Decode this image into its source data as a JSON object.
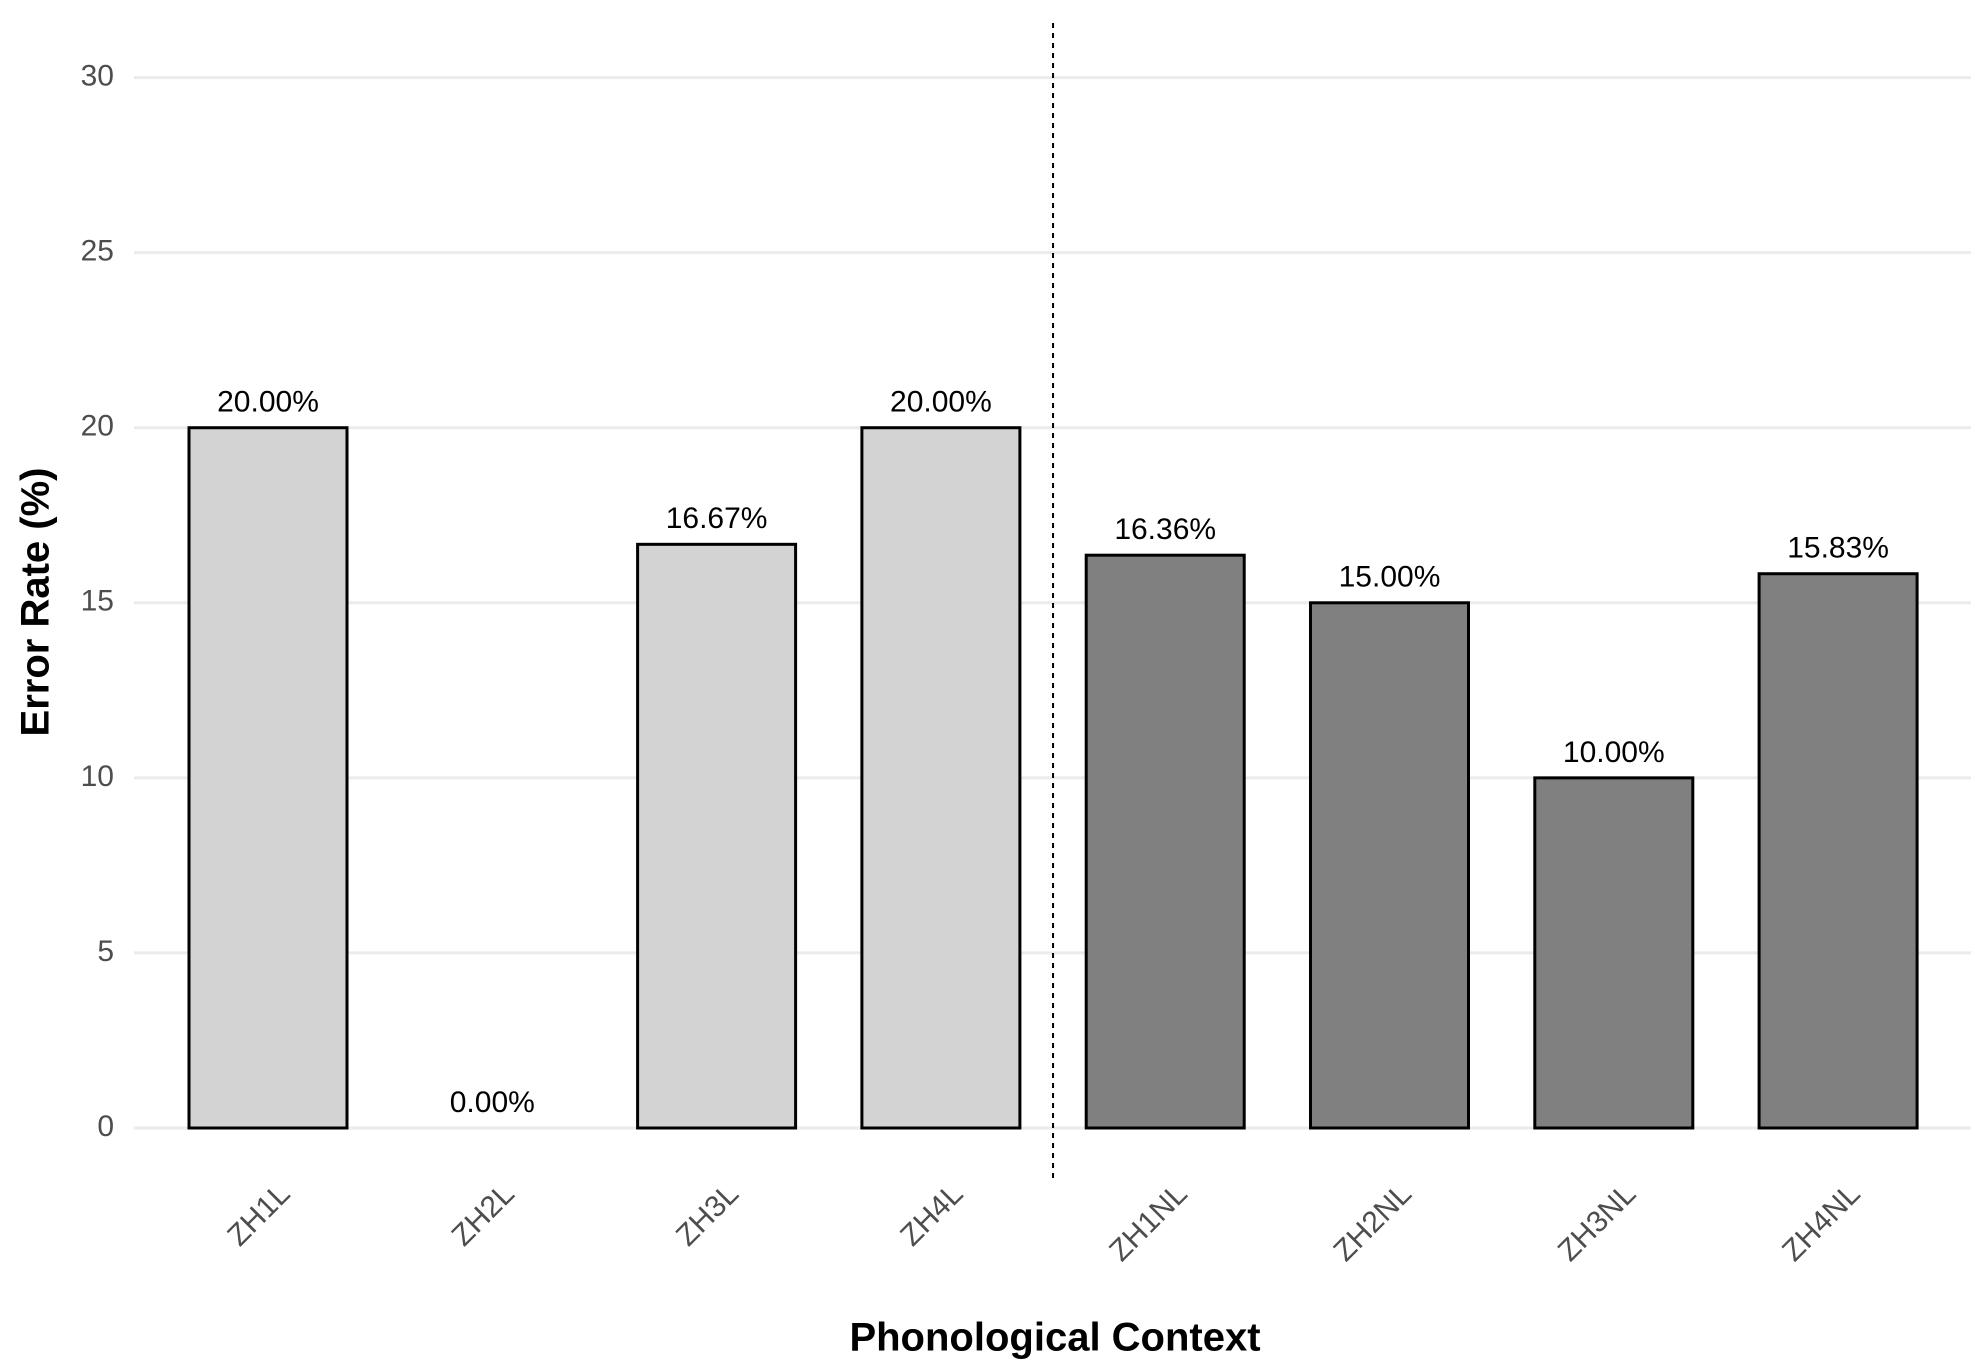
{
  "chart_data": {
    "type": "bar",
    "x_label": "Phonological Context",
    "y_label": "Error Rate (%)",
    "categories": [
      "ZH1L",
      "ZH2L",
      "ZH3L",
      "ZH4L",
      "ZH1NL",
      "ZH2NL",
      "ZH3NL",
      "ZH4NL"
    ],
    "values": [
      20,
      0,
      16.67,
      20,
      16.36,
      15,
      10,
      15.83
    ],
    "value_labels": [
      "20.00%",
      "0.00%",
      "16.67%",
      "20.00%",
      "16.36%",
      "15.00%",
      "10.00%",
      "15.83%"
    ],
    "colors": [
      "#d3d3d3",
      "#d3d3d3",
      "#d3d3d3",
      "#d3d3d3",
      "#808080",
      "#808080",
      "#808080",
      "#808080"
    ],
    "ylim": [
      0,
      30
    ],
    "yticks": [
      0,
      5,
      10,
      15,
      20,
      25,
      30
    ],
    "grid": true
  }
}
